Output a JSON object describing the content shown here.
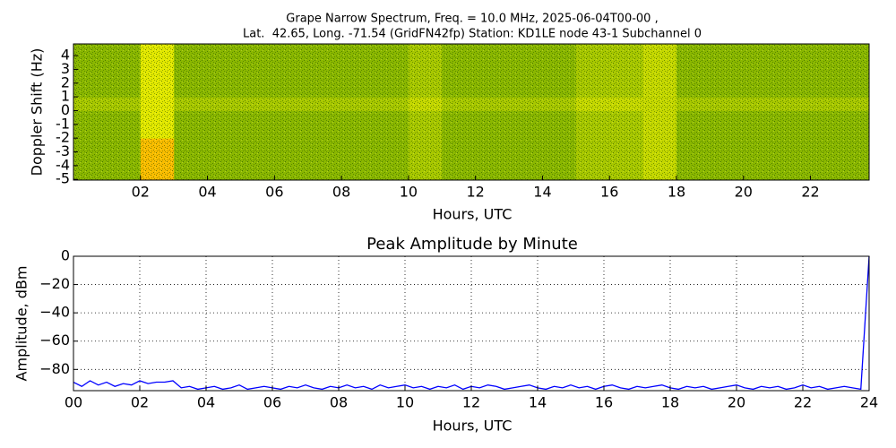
{
  "chart_data": [
    {
      "type": "heatmap",
      "title": "Grape Narrow Spectrum, Freq. = 10.0 MHz, 2025-06-04T00-00 ,",
      "subtitle": "Lat.  42.65, Long. -71.54 (GridFN42fp) Station: KD1LE node 43-1 Subchannel 0",
      "xlabel": "Hours, UTC",
      "ylabel": "Doppler Shift (Hz)",
      "xlim": [
        0,
        23.75
      ],
      "ylim": [
        -5.05,
        4.85
      ],
      "xticks": [
        {
          "value": 2,
          "label": "02"
        },
        {
          "value": 4,
          "label": "04"
        },
        {
          "value": 6,
          "label": "06"
        },
        {
          "value": 8,
          "label": "08"
        },
        {
          "value": 10,
          "label": "10"
        },
        {
          "value": 12,
          "label": "12"
        },
        {
          "value": 14,
          "label": "14"
        },
        {
          "value": 16,
          "label": "16"
        },
        {
          "value": 18,
          "label": "18"
        },
        {
          "value": 20,
          "label": "20"
        },
        {
          "value": 22,
          "label": "22"
        }
      ],
      "yticks": [
        4,
        3,
        2,
        1,
        0,
        -1,
        -2,
        -3,
        -4,
        -5
      ],
      "x_bins": [
        0,
        1,
        2,
        3,
        4,
        5,
        6,
        7,
        8,
        9,
        10,
        11,
        12,
        13,
        14,
        15,
        16,
        17,
        18,
        19,
        20,
        21,
        22,
        23
      ],
      "y_bins": [
        -5,
        -4,
        -3,
        -2,
        -1,
        0,
        1,
        2,
        3,
        4
      ],
      "zlim": [
        0,
        10
      ],
      "colormap": [
        "#1f5c00",
        "#5c9e00",
        "#a8c800",
        "#f0f000",
        "#ff9900"
      ],
      "z": [
        [
          4,
          4,
          9,
          4,
          4,
          4,
          4,
          4,
          4,
          4,
          5,
          4,
          4,
          4,
          4,
          5,
          5,
          6,
          4,
          4,
          4,
          4,
          4,
          4
        ],
        [
          4,
          4,
          9,
          4,
          4,
          4,
          4,
          4,
          4,
          4,
          5,
          4,
          4,
          4,
          4,
          5,
          5,
          6,
          4,
          4,
          4,
          4,
          4,
          4
        ],
        [
          4,
          4,
          9,
          4,
          4,
          4,
          4,
          4,
          4,
          4,
          5,
          4,
          4,
          4,
          4,
          5,
          5,
          6,
          4,
          4,
          4,
          4,
          4,
          4
        ],
        [
          4,
          4,
          7,
          4,
          4,
          4,
          4,
          4,
          4,
          4,
          5,
          4,
          4,
          4,
          4,
          5,
          5,
          6,
          4,
          4,
          4,
          4,
          4,
          4
        ],
        [
          4,
          4,
          7,
          4,
          4,
          4,
          4,
          4,
          4,
          4,
          5,
          4,
          4,
          4,
          4,
          5,
          5,
          6,
          4,
          4,
          4,
          4,
          4,
          4
        ],
        [
          5,
          5,
          7,
          5,
          5,
          5,
          5,
          5,
          5,
          5,
          6,
          5,
          5,
          5,
          5,
          6,
          6,
          6,
          5,
          5,
          5,
          5,
          5,
          5
        ],
        [
          4,
          4,
          7,
          4,
          4,
          4,
          4,
          4,
          4,
          4,
          5,
          4,
          4,
          4,
          4,
          5,
          5,
          6,
          4,
          4,
          4,
          4,
          4,
          4
        ],
        [
          4,
          4,
          7,
          4,
          4,
          4,
          4,
          4,
          4,
          4,
          5,
          4,
          4,
          4,
          4,
          5,
          5,
          6,
          4,
          4,
          4,
          4,
          4,
          4
        ],
        [
          4,
          4,
          7,
          4,
          4,
          4,
          4,
          4,
          4,
          4,
          5,
          4,
          4,
          4,
          4,
          5,
          5,
          6,
          4,
          4,
          4,
          4,
          4,
          4
        ],
        [
          4,
          4,
          7,
          4,
          4,
          4,
          4,
          4,
          4,
          4,
          5,
          4,
          4,
          4,
          4,
          5,
          5,
          6,
          4,
          4,
          4,
          4,
          4,
          4
        ]
      ]
    },
    {
      "type": "line",
      "title": "Peak Amplitude by Minute",
      "xlabel": "Hours, UTC",
      "ylabel": "Amplitude, dBm",
      "xlim": [
        0,
        24
      ],
      "ylim": [
        -95,
        0
      ],
      "grid": true,
      "xticks": [
        {
          "value": 0,
          "label": "00"
        },
        {
          "value": 2,
          "label": "02"
        },
        {
          "value": 4,
          "label": "04"
        },
        {
          "value": 6,
          "label": "06"
        },
        {
          "value": 8,
          "label": "08"
        },
        {
          "value": 10,
          "label": "10"
        },
        {
          "value": 12,
          "label": "12"
        },
        {
          "value": 14,
          "label": "14"
        },
        {
          "value": 16,
          "label": "16"
        },
        {
          "value": 18,
          "label": "18"
        },
        {
          "value": 20,
          "label": "20"
        },
        {
          "value": 22,
          "label": "22"
        },
        {
          "value": 24,
          "label": "24"
        }
      ],
      "yticks": [
        0,
        {
          "value": -20,
          "label": "−20"
        },
        {
          "value": -40,
          "label": "−40"
        },
        {
          "value": -60,
          "label": "−60"
        },
        {
          "value": -80,
          "label": "−80"
        }
      ],
      "x": [
        0,
        0.25,
        0.5,
        0.75,
        1,
        1.25,
        1.5,
        1.75,
        2,
        2.25,
        2.5,
        2.75,
        3,
        3.25,
        3.5,
        3.75,
        4,
        4.25,
        4.5,
        4.75,
        5,
        5.25,
        5.5,
        5.75,
        6,
        6.25,
        6.5,
        6.75,
        7,
        7.25,
        7.5,
        7.75,
        8,
        8.25,
        8.5,
        8.75,
        9,
        9.25,
        9.5,
        9.75,
        10,
        10.25,
        10.5,
        10.75,
        11,
        11.25,
        11.5,
        11.75,
        12,
        12.25,
        12.5,
        12.75,
        13,
        13.25,
        13.5,
        13.75,
        14,
        14.25,
        14.5,
        14.75,
        15,
        15.25,
        15.5,
        15.75,
        16,
        16.25,
        16.5,
        16.75,
        17,
        17.25,
        17.5,
        17.75,
        18,
        18.25,
        18.5,
        18.75,
        19,
        19.25,
        19.5,
        19.75,
        20,
        20.25,
        20.5,
        20.75,
        21,
        21.25,
        21.5,
        21.75,
        22,
        22.25,
        22.5,
        22.75,
        23,
        23.25,
        23.5,
        23.75,
        24
      ],
      "series": [
        {
          "color": "#0000ff",
          "values": [
            -89,
            -92,
            -88,
            -91,
            -89,
            -92,
            -90,
            -91,
            -88,
            -90,
            -89,
            -89,
            -88,
            -93,
            -92,
            -94,
            -93,
            -92,
            -94,
            -93,
            -91,
            -94,
            -93,
            -92,
            -93,
            -94,
            -92,
            -93,
            -91,
            -93,
            -94,
            -92,
            -93,
            -91,
            -93,
            -92,
            -94,
            -91,
            -93,
            -92,
            -91,
            -93,
            -92,
            -94,
            -92,
            -93,
            -91,
            -94,
            -92,
            -93,
            -91,
            -92,
            -94,
            -93,
            -92,
            -91,
            -93,
            -94,
            -92,
            -93,
            -91,
            -93,
            -92,
            -94,
            -92,
            -91,
            -93,
            -94,
            -92,
            -93,
            -92,
            -91,
            -93,
            -94,
            -92,
            -93,
            -92,
            -94,
            -93,
            -92,
            -91,
            -93,
            -94,
            -92,
            -93,
            -92,
            -94,
            -93,
            -91,
            -93,
            -92,
            -94,
            -93,
            -92,
            -93,
            -94,
            0
          ]
        }
      ]
    }
  ]
}
